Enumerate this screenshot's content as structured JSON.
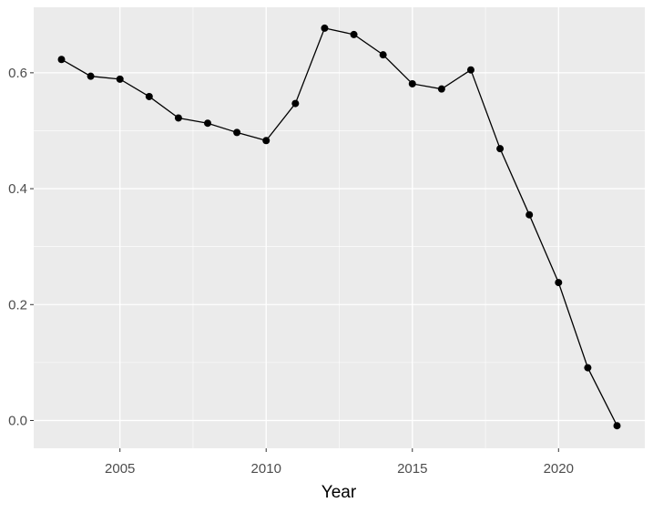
{
  "chart_data": {
    "type": "line",
    "x_label": "Year",
    "x": [
      2003,
      2004,
      2005,
      2006,
      2007,
      2008,
      2009,
      2010,
      2011,
      2012,
      2013,
      2014,
      2015,
      2016,
      2017,
      2018,
      2019,
      2020,
      2021,
      2022
    ],
    "series": [
      {
        "color": "#000000",
        "values": [
          0.623,
          0.594,
          0.589,
          0.559,
          0.522,
          0.513,
          0.497,
          0.483,
          0.547,
          0.677,
          0.666,
          0.631,
          0.581,
          0.572,
          0.605,
          0.469,
          0.355,
          0.238,
          0.091,
          -0.009
        ]
      }
    ],
    "xlim": [
      2002.05,
      2022.95
    ],
    "xticks": [
      2005,
      2010,
      2015,
      2020
    ],
    "ylim": [
      -0.048,
      0.713
    ],
    "yticks": [
      {
        "value": 0,
        "label": "0.0"
      },
      0.2,
      0.4,
      0.6
    ],
    "grid": true
  }
}
